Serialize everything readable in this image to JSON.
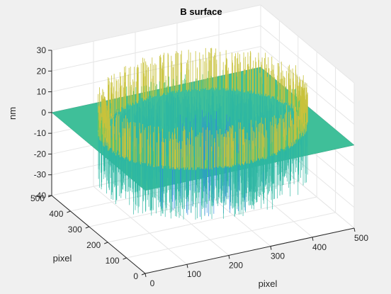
{
  "chart_data": {
    "type": "surface",
    "title": "B surface",
    "xlabel": "pixel",
    "ylabel": "pixel",
    "zlabel": "nm",
    "xlim": [
      0,
      500
    ],
    "ylim": [
      0,
      500
    ],
    "zlim": [
      -40,
      30
    ],
    "x_ticks": [
      "0",
      "100",
      "200",
      "300",
      "400",
      "500"
    ],
    "y_ticks": [
      "0",
      "100",
      "200",
      "300",
      "400",
      "500"
    ],
    "z_ticks": [
      "-40",
      "-30",
      "-20",
      "-10",
      "0",
      "10",
      "20",
      "30"
    ],
    "grid": true,
    "colormap": [
      "#3e26a8",
      "#2f8ae0",
      "#2eb7a2",
      "#55c56a",
      "#c9c23c",
      "#f9dc27"
    ],
    "plane_color": "#3fbf99",
    "surface_description_values": {
      "flat_plane_z": 0,
      "central_well_depth_min": -40,
      "rim_peak_max": 20
    }
  },
  "ui": {
    "background": "#f0f0f0",
    "axes_background": "#ffffff",
    "grid_color": "#e6e6e6",
    "axis_color": "#262626"
  }
}
